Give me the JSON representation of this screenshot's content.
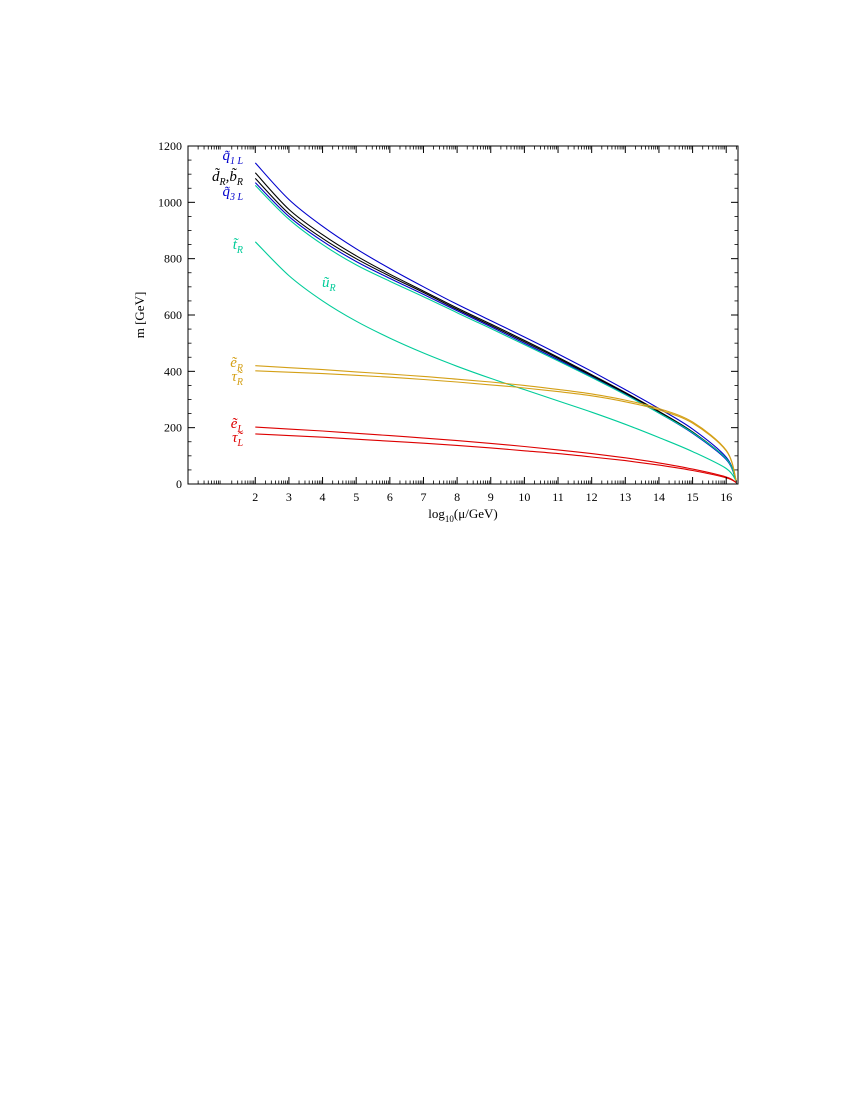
{
  "chart_data": {
    "type": "line",
    "title": "",
    "xlabel": "log10(μ/GeV)",
    "xlabel_base": "log",
    "xlabel_sub": "10",
    "xlabel_rest": "(μ/GeV)",
    "ylabel": "m [GeV]",
    "xlim": [
      0,
      16.35
    ],
    "ylim": [
      0,
      1200
    ],
    "x_ticks": [
      "2",
      "3",
      "4",
      "5",
      "6",
      "7",
      "8",
      "9",
      "10",
      "11",
      "12",
      "13",
      "14",
      "15",
      "16"
    ],
    "y_ticks": [
      "0",
      "200",
      "400",
      "600",
      "800",
      "1000",
      "1200"
    ],
    "grid": false,
    "legend": "none",
    "series": [
      {
        "label_base": "q̃",
        "label_sub": "1 L",
        "color": "#0000cc",
        "x": [
          2,
          3,
          4,
          5,
          6,
          7,
          8,
          9,
          10,
          11,
          12,
          13,
          14,
          15,
          16,
          16.3
        ],
        "y": [
          1140,
          1010,
          915,
          835,
          765,
          700,
          638,
          580,
          522,
          462,
          400,
          335,
          268,
          195,
          95,
          10
        ]
      },
      {
        "label_base": "d̃",
        "label_sub": "R",
        "label_base_2": "b̃",
        "label_sub_2": "R",
        "color": "#000000",
        "x": [
          2,
          3,
          4,
          5,
          6,
          7,
          8,
          9,
          10,
          11,
          12,
          13,
          14,
          15,
          16,
          16.3
        ],
        "y": [
          1105,
          975,
          885,
          810,
          745,
          685,
          625,
          568,
          510,
          450,
          388,
          325,
          258,
          185,
          90,
          10
        ]
      },
      {
        "label_base": "",
        "label_sub": "",
        "color": "#000000",
        "x": [
          2,
          3,
          4,
          5,
          6,
          7,
          8,
          9,
          10,
          11,
          12,
          13,
          14,
          15,
          16,
          16.3
        ],
        "y": [
          1085,
          960,
          872,
          800,
          738,
          680,
          620,
          563,
          505,
          446,
          384,
          322,
          256,
          183,
          89,
          10
        ]
      },
      {
        "label_base": "q̃",
        "label_sub": "3 L",
        "color": "#0000cc",
        "x": [
          2,
          3,
          4,
          5,
          6,
          7,
          8,
          9,
          10,
          11,
          12,
          13,
          14,
          15,
          16,
          16.3
        ],
        "y": [
          1070,
          950,
          862,
          790,
          730,
          673,
          615,
          558,
          500,
          441,
          380,
          318,
          252,
          180,
          87,
          10
        ]
      },
      {
        "label_base": "",
        "label_sub": "",
        "color": "#00cc99",
        "x": [
          2,
          3,
          4,
          5,
          6,
          7,
          8,
          9,
          10,
          11,
          12,
          13,
          14,
          15,
          16,
          16.3
        ],
        "y": [
          1060,
          940,
          850,
          778,
          720,
          665,
          608,
          552,
          495,
          437,
          378,
          317,
          252,
          182,
          90,
          10
        ]
      },
      {
        "label_base": "t̃",
        "label_sub": "R",
        "label_base_2": "ũ",
        "label_sub_2": "R",
        "color": "#00cc99",
        "x": [
          2,
          3,
          4,
          5,
          6,
          7,
          8,
          9,
          10,
          11,
          12,
          13,
          14,
          15,
          16,
          16.3
        ],
        "y": [
          860,
          740,
          650,
          578,
          518,
          465,
          418,
          375,
          335,
          295,
          255,
          212,
          165,
          115,
          55,
          10
        ]
      },
      {
        "label_base": "ẽ",
        "label_sub": "R",
        "color": "#d4a017",
        "x": [
          2,
          3,
          4,
          5,
          6,
          7,
          8,
          9,
          10,
          11,
          12,
          13,
          14,
          15,
          16,
          16.3
        ],
        "y": [
          420,
          413,
          406,
          398,
          390,
          382,
          372,
          362,
          350,
          336,
          320,
          298,
          268,
          220,
          120,
          10
        ]
      },
      {
        "label_base": "τ̃",
        "label_sub": "R",
        "color": "#d4a017",
        "x": [
          2,
          3,
          4,
          5,
          6,
          7,
          8,
          9,
          10,
          11,
          12,
          13,
          14,
          15,
          16,
          16.3
        ],
        "y": [
          402,
          397,
          392,
          386,
          379,
          371,
          362,
          352,
          341,
          328,
          313,
          292,
          263,
          216,
          118,
          10
        ]
      },
      {
        "label_base": "ẽ",
        "label_sub": "L",
        "color": "#dd0000",
        "x": [
          2,
          3,
          4,
          5,
          6,
          7,
          8,
          9,
          10,
          11,
          12,
          13,
          14,
          15,
          16,
          16.3
        ],
        "y": [
          202,
          195,
          188,
          180,
          172,
          163,
          154,
          144,
          133,
          121,
          108,
          93,
          75,
          53,
          25,
          5
        ]
      },
      {
        "label_base": "τ̃",
        "label_sub": "L",
        "color": "#dd0000",
        "x": [
          2,
          3,
          4,
          5,
          6,
          7,
          8,
          9,
          10,
          11,
          12,
          13,
          14,
          15,
          16,
          16.3
        ],
        "y": [
          178,
          172,
          166,
          159,
          152,
          145,
          137,
          128,
          118,
          108,
          96,
          83,
          67,
          48,
          22,
          5
        ]
      }
    ]
  }
}
